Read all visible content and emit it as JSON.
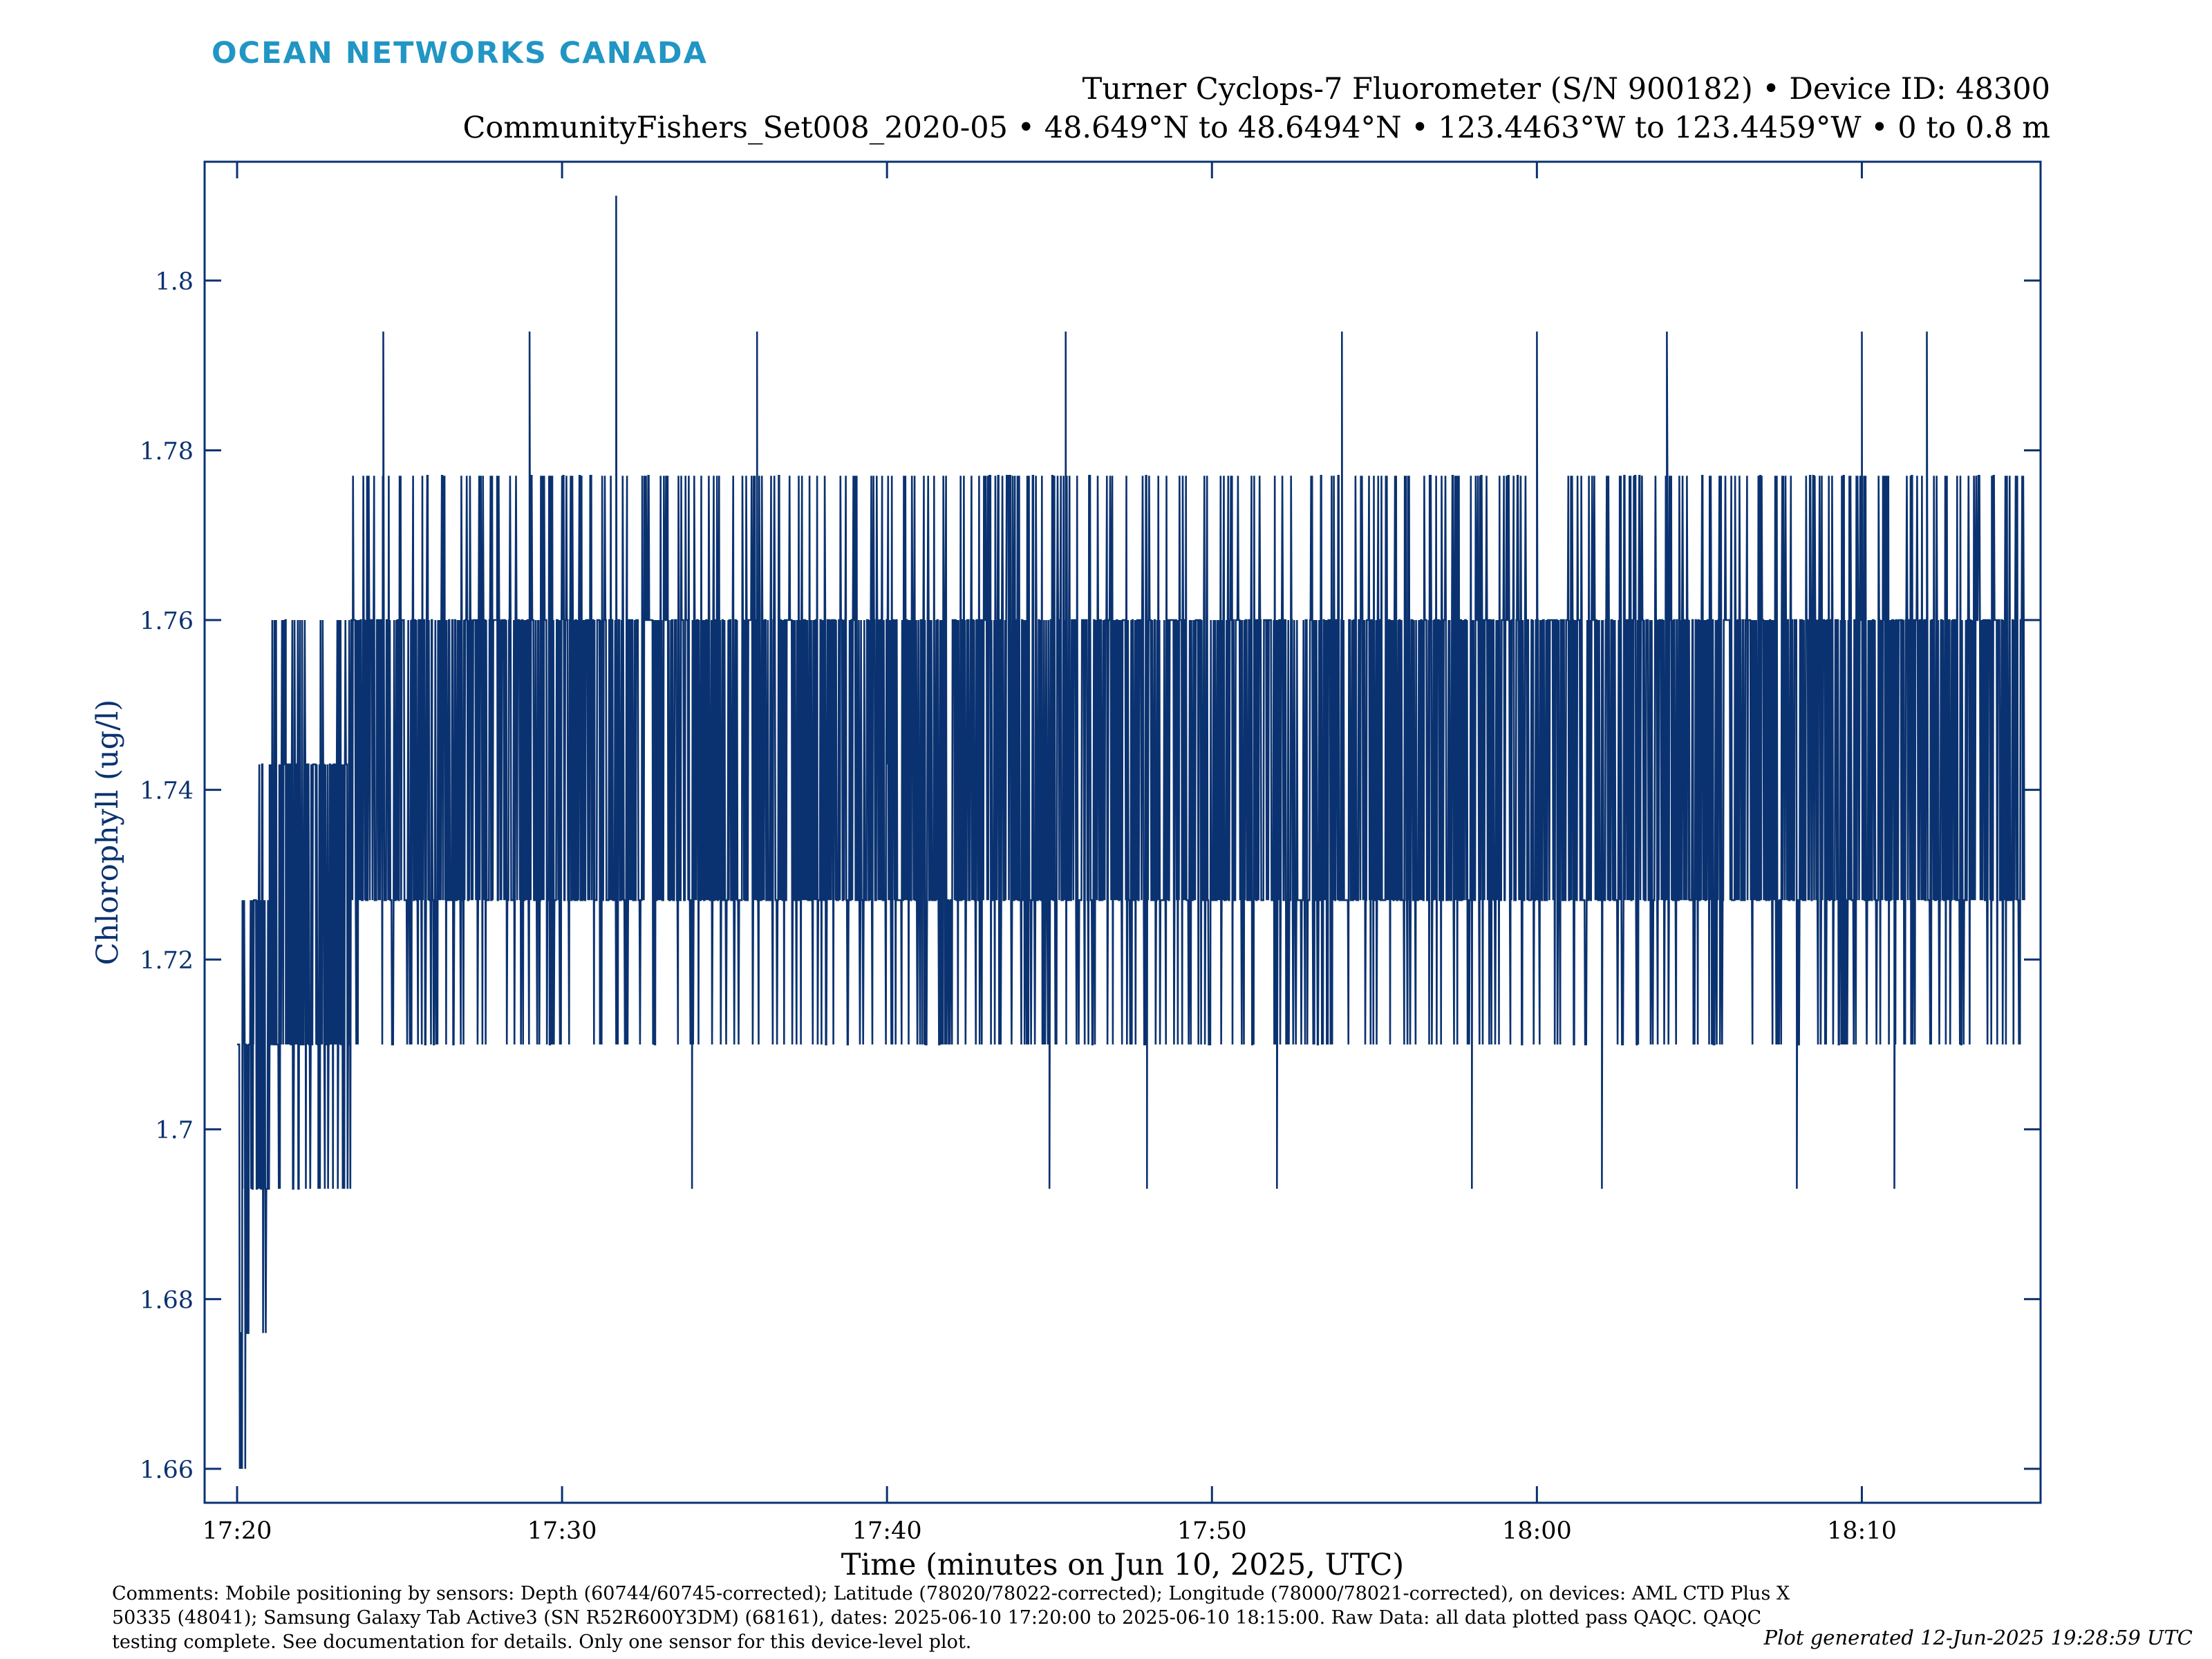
{
  "header": {
    "logo_text": "OCEAN NETWORKS CANADA",
    "title_line1": "Turner Cyclops-7 Fluorometer (S/N 900182) • Device ID: 48300",
    "title_line2": "CommunityFishers_Set008_2020-05 • 48.649°N to 48.6494°N • 123.4463°W to 123.4459°W • 0 to 0.8 m"
  },
  "footer": {
    "comments": "Comments: Mobile positioning by sensors: Depth (60744/60745-corrected); Latitude (78020/78022-corrected); Longitude (78000/78021-corrected), on devices: AML CTD Plus X 50335 (48041); Samsung Galaxy Tab Active3 (SN R52R600Y3DM) (68161), dates: 2025-06-10 17:20:00 to 2025-06-10 18:15:00. Raw Data: all data plotted pass QAQC. QAQC testing complete. See documentation for details. Only one sensor for this device-level plot.",
    "generated": "Plot generated 12-Jun-2025 19:28:59 UTC"
  },
  "colors": {
    "series": "#0b3270",
    "axis_text": "#0b3270",
    "logo": "#2196c4"
  },
  "chart_data": {
    "type": "line",
    "title": "",
    "xlabel": "Time (minutes on Jun 10, 2025, UTC)",
    "ylabel": "Chlorophyll (ug/l)",
    "xlim": [
      "17:19:00",
      "18:15:30"
    ],
    "ylim": [
      1.656,
      1.814
    ],
    "x_ticks": [
      "17:20",
      "17:30",
      "17:40",
      "17:50",
      "18:00",
      "18:10"
    ],
    "y_ticks": [
      1.66,
      1.68,
      1.7,
      1.72,
      1.74,
      1.76,
      1.78,
      1.8
    ],
    "y_tick_labels": [
      "1.66",
      "1.68",
      "1.7",
      "1.72",
      "1.74",
      "1.76",
      "1.78",
      "1.8"
    ],
    "grid": false,
    "legend": "none",
    "series": [
      {
        "start": "17:20:00",
        "end": "18:15:00",
        "quantized_levels": [
          1.66,
          1.676,
          1.693,
          1.71,
          1.727,
          1.743,
          1.76,
          1.777,
          1.794,
          1.81
        ],
        "points": [
          [
            "17:20:00",
            1.71
          ],
          [
            "17:20:05",
            1.676
          ],
          [
            "17:20:10",
            1.693
          ],
          [
            "17:20:15",
            1.66
          ],
          [
            "17:20:20",
            1.676
          ],
          [
            "17:20:30",
            1.71
          ],
          [
            "17:20:40",
            1.727
          ],
          [
            "17:20:50",
            1.693
          ],
          [
            "17:21:00",
            1.743
          ],
          [
            "17:21:30",
            1.71
          ],
          [
            "17:22:00",
            1.76
          ],
          [
            "17:22:30",
            1.693
          ],
          [
            "17:23:00",
            1.743
          ],
          [
            "17:24:00",
            1.727
          ],
          [
            "17:24:30",
            1.794
          ],
          [
            "17:26:00",
            1.743
          ],
          [
            "17:28:00",
            1.777
          ],
          [
            "17:29:00",
            1.794
          ],
          [
            "17:31:00",
            1.727
          ],
          [
            "17:31:40",
            1.81
          ],
          [
            "17:32:00",
            1.743
          ],
          [
            "17:34:00",
            1.693
          ],
          [
            "17:35:00",
            1.76
          ],
          [
            "17:36:00",
            1.794
          ],
          [
            "17:40:00",
            1.743
          ],
          [
            "17:45:00",
            1.693
          ],
          [
            "17:45:30",
            1.794
          ],
          [
            "17:48:00",
            1.693
          ],
          [
            "17:50:00",
            1.727
          ],
          [
            "17:52:00",
            1.693
          ],
          [
            "17:54:00",
            1.794
          ],
          [
            "17:58:00",
            1.693
          ],
          [
            "18:00:00",
            1.794
          ],
          [
            "18:02:00",
            1.693
          ],
          [
            "18:04:00",
            1.794
          ],
          [
            "18:08:00",
            1.693
          ],
          [
            "18:10:00",
            1.794
          ],
          [
            "18:11:00",
            1.693
          ],
          [
            "18:12:00",
            1.794
          ],
          [
            "18:14:00",
            1.777
          ],
          [
            "18:15:00",
            1.727
          ]
        ]
      }
    ]
  }
}
